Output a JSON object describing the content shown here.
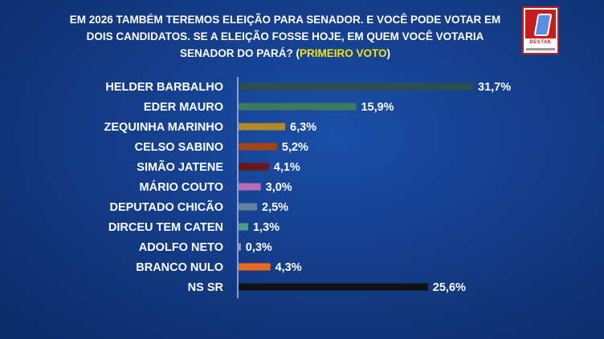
{
  "header": {
    "line1": "EM 2026 TAMBÉM TEREMOS ELEIÇÃO PARA SENADOR. E VOCÊ PODE VOTAR EM",
    "line2": "DOIS CANDIDATOS. SE A ELEIÇÃO FOSSE HOJE, EM QUEM VOCÊ VOTARIA",
    "line3_main": "SENADOR DO PARÁ? (",
    "line3_highlight": "PRIMEIRO VOTO",
    "line3_end": ")"
  },
  "logo": {
    "brand": "DESTAK"
  },
  "chart_data": {
    "type": "bar",
    "orientation": "horizontal",
    "categories": [
      "HELDER BARBALHO",
      "EDER MAURO",
      "ZEQUINHA MARINHO",
      "CELSO SABINO",
      "SIMÃO  JATENE",
      "MÁRIO COUTO",
      "DEPUTADO CHICÃO",
      "DIRCEU TEM CATEN",
      "ADOLFO NETO",
      "BRANCO NULO",
      "NS SR"
    ],
    "values": [
      31.7,
      15.9,
      6.3,
      5.2,
      4.1,
      3.0,
      2.5,
      1.3,
      0.3,
      4.3,
      25.6
    ],
    "value_labels": [
      "31,7%",
      "15,9%",
      "6,3%",
      "5,2%",
      "4,1%",
      "3,0%",
      "2,5%",
      "1,3%",
      "0,3%",
      "4,3%",
      "25,6%"
    ],
    "colors": [
      "#2e4d4f",
      "#3f7a60",
      "#b08a28",
      "#a2461a",
      "#6a1616",
      "#b86ab8",
      "#5e84a0",
      "#4f9a8c",
      "#a0a0a0",
      "#e86b1f",
      "#111111"
    ],
    "xlim": [
      0,
      31.7
    ],
    "grid": false,
    "legend": "none"
  }
}
